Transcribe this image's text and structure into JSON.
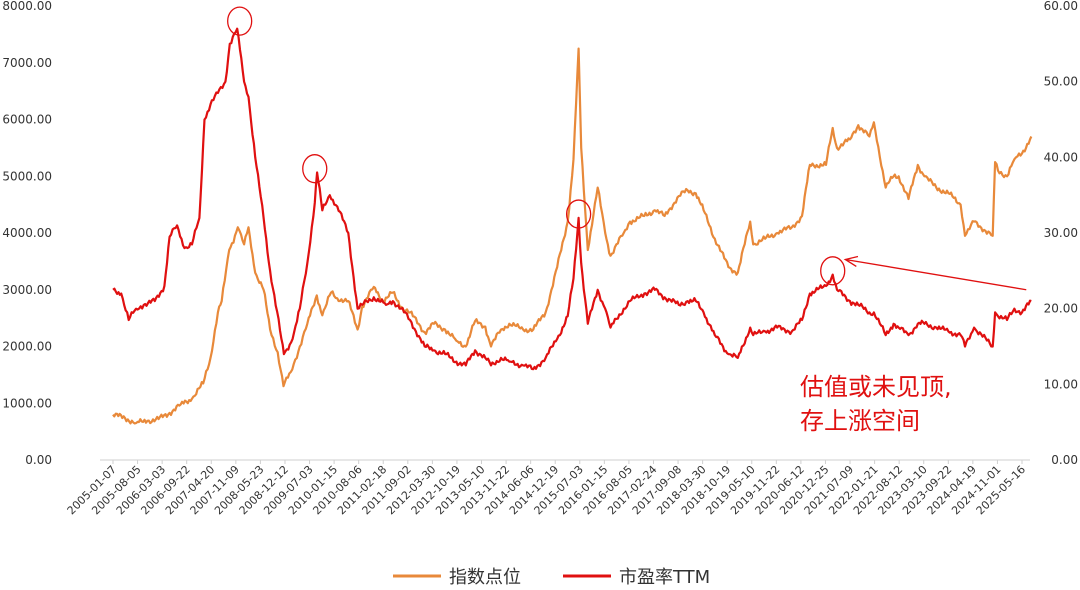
{
  "chart_data": {
    "type": "line",
    "y_left": {
      "ylim": [
        0,
        8000
      ],
      "ticks": [
        "0.00",
        "1000.00",
        "2000.00",
        "3000.00",
        "4000.00",
        "5000.00",
        "6000.00",
        "7000.00",
        "8000.00"
      ]
    },
    "y_right": {
      "ylim": [
        0,
        60
      ],
      "ticks": [
        "0.00",
        "10.00",
        "20.00",
        "30.00",
        "40.00",
        "50.00",
        "60.00"
      ]
    },
    "x_ticks": [
      "2005-01-07",
      "2005-08-05",
      "2006-03-03",
      "2006-09-22",
      "2007-04-20",
      "2007-11-09",
      "2008-05-23",
      "2008-12-12",
      "2009-07-03",
      "2010-01-15",
      "2010-08-06",
      "2011-02-18",
      "2011-09-02",
      "2012-03-30",
      "2012-10-19",
      "2013-05-10",
      "2013-11-22",
      "2014-06-06",
      "2014-12-19",
      "2015-07-03",
      "2016-01-15",
      "2016-08-05",
      "2017-02-24",
      "2017-09-08",
      "2018-03-30",
      "2018-10-19",
      "2019-05-10",
      "2019-11-22",
      "2020-06-12",
      "2020-12-25",
      "2021-07-09",
      "2022-01-21",
      "2022-08-12",
      "2023-03-10",
      "2023-09-22",
      "2024-04-19",
      "2024-11-01",
      "2025-05-16"
    ],
    "series": [
      {
        "name": "指数点位",
        "axis": "left",
        "color": "#e8893a",
        "points": [
          [
            "2005-01-07",
            800
          ],
          [
            "2005-04-15",
            740
          ],
          [
            "2005-07-15",
            650
          ],
          [
            "2005-10-15",
            690
          ],
          [
            "2006-01-15",
            720
          ],
          [
            "2006-04-15",
            830
          ],
          [
            "2006-07-15",
            980
          ],
          [
            "2006-10-15",
            1080
          ],
          [
            "2007-01-15",
            1350
          ],
          [
            "2007-03-15",
            1800
          ],
          [
            "2007-05-15",
            2600
          ],
          [
            "2007-06-15",
            2800
          ],
          [
            "2007-08-15",
            3700
          ],
          [
            "2007-10-01",
            3950
          ],
          [
            "2007-10-25",
            4100
          ],
          [
            "2007-12-15",
            3800
          ],
          [
            "2008-01-20",
            4100
          ],
          [
            "2008-03-15",
            3300
          ],
          [
            "2008-05-23",
            3000
          ],
          [
            "2008-07-15",
            2300
          ],
          [
            "2008-09-15",
            1900
          ],
          [
            "2008-11-01",
            1300
          ],
          [
            "2008-12-31",
            1550
          ],
          [
            "2009-03-15",
            2000
          ],
          [
            "2009-05-15",
            2400
          ],
          [
            "2009-08-01",
            2900
          ],
          [
            "2009-09-15",
            2550
          ],
          [
            "2009-11-25",
            2950
          ],
          [
            "2010-01-15",
            2850
          ],
          [
            "2010-04-15",
            2800
          ],
          [
            "2010-06-30",
            2300
          ],
          [
            "2010-08-06",
            2700
          ],
          [
            "2010-11-10",
            3050
          ],
          [
            "2011-01-25",
            2800
          ],
          [
            "2011-04-15",
            2950
          ],
          [
            "2011-06-20",
            2700
          ],
          [
            "2011-09-02",
            2600
          ],
          [
            "2011-12-31",
            2250
          ],
          [
            "2012-03-15",
            2400
          ],
          [
            "2012-06-15",
            2300
          ],
          [
            "2012-09-15",
            2100
          ],
          [
            "2012-12-01",
            2000
          ],
          [
            "2013-02-15",
            2450
          ],
          [
            "2013-05-10",
            2350
          ],
          [
            "2013-06-25",
            2000
          ],
          [
            "2013-09-15",
            2300
          ],
          [
            "2013-11-22",
            2400
          ],
          [
            "2014-03-15",
            2300
          ],
          [
            "2014-06-06",
            2300
          ],
          [
            "2014-09-15",
            2600
          ],
          [
            "2014-12-19",
            3400
          ],
          [
            "2015-03-15",
            4200
          ],
          [
            "2015-05-01",
            5300
          ],
          [
            "2015-06-12",
            7250
          ],
          [
            "2015-07-03",
            5500
          ],
          [
            "2015-08-26",
            3700
          ],
          [
            "2015-11-15",
            4800
          ],
          [
            "2016-01-15",
            4000
          ],
          [
            "2016-02-28",
            3600
          ],
          [
            "2016-06-15",
            4000
          ],
          [
            "2016-08-05",
            4200
          ],
          [
            "2016-11-30",
            4300
          ],
          [
            "2017-02-24",
            4400
          ],
          [
            "2017-05-15",
            4300
          ],
          [
            "2017-09-08",
            4650
          ],
          [
            "2017-11-20",
            4750
          ],
          [
            "2018-01-25",
            4700
          ],
          [
            "2018-03-30",
            4400
          ],
          [
            "2018-06-30",
            3900
          ],
          [
            "2018-10-19",
            3400
          ],
          [
            "2019-01-04",
            3300
          ],
          [
            "2019-04-15",
            4200
          ],
          [
            "2019-05-10",
            3800
          ],
          [
            "2019-08-15",
            3900
          ],
          [
            "2019-11-22",
            4000
          ],
          [
            "2020-03-20",
            4100
          ],
          [
            "2020-06-12",
            4300
          ],
          [
            "2020-08-15",
            5200
          ],
          [
            "2020-12-25",
            5200
          ],
          [
            "2021-02-18",
            5850
          ],
          [
            "2021-03-25",
            5500
          ],
          [
            "2021-07-09",
            5650
          ],
          [
            "2021-09-15",
            5900
          ],
          [
            "2021-12-15",
            5700
          ],
          [
            "2022-01-21",
            5950
          ],
          [
            "2022-04-27",
            4800
          ],
          [
            "2022-07-01",
            5000
          ],
          [
            "2022-08-12",
            5000
          ],
          [
            "2022-10-31",
            4600
          ],
          [
            "2023-01-15",
            5200
          ],
          [
            "2023-03-10",
            5000
          ],
          [
            "2023-06-15",
            4800
          ],
          [
            "2023-09-22",
            4700
          ],
          [
            "2023-12-31",
            4500
          ],
          [
            "2024-02-05",
            3950
          ],
          [
            "2024-04-19",
            4200
          ],
          [
            "2024-09-18",
            3950
          ],
          [
            "2024-10-08",
            5250
          ],
          [
            "2024-11-01",
            5100
          ],
          [
            "2025-01-13",
            5000
          ],
          [
            "2025-03-15",
            5300
          ],
          [
            "2025-05-16",
            5400
          ],
          [
            "2025-07-31",
            5700
          ]
        ]
      },
      {
        "name": "市盈率TTM",
        "axis": "right",
        "color": "#e01010",
        "points": [
          [
            "2005-01-07",
            22.5
          ],
          [
            "2005-03-15",
            22.0
          ],
          [
            "2005-05-15",
            18.5
          ],
          [
            "2005-07-15",
            20.0
          ],
          [
            "2005-09-15",
            20.5
          ],
          [
            "2005-12-15",
            21.0
          ],
          [
            "2006-03-03",
            23.0
          ],
          [
            "2006-04-15",
            29.5
          ],
          [
            "2006-06-15",
            31.0
          ],
          [
            "2006-08-15",
            28.0
          ],
          [
            "2006-10-15",
            28.5
          ],
          [
            "2006-12-15",
            32.0
          ],
          [
            "2007-01-25",
            45.0
          ],
          [
            "2007-03-15",
            47.0
          ],
          [
            "2007-05-15",
            48.5
          ],
          [
            "2007-07-15",
            50.0
          ],
          [
            "2007-08-20",
            55.0
          ],
          [
            "2007-10-20",
            57.0
          ],
          [
            "2007-12-15",
            50.0
          ],
          [
            "2008-01-20",
            48.0
          ],
          [
            "2008-03-15",
            40.0
          ],
          [
            "2008-05-23",
            32.0
          ],
          [
            "2008-07-15",
            25.0
          ],
          [
            "2008-10-15",
            16.0
          ],
          [
            "2008-11-05",
            14.0
          ],
          [
            "2009-01-15",
            16.0
          ],
          [
            "2009-03-15",
            20.0
          ],
          [
            "2009-05-15",
            26.0
          ],
          [
            "2009-07-15",
            34.0
          ],
          [
            "2009-08-03",
            38.0
          ],
          [
            "2009-09-15",
            33.0
          ],
          [
            "2009-11-15",
            35.0
          ],
          [
            "2010-01-15",
            33.5
          ],
          [
            "2010-04-15",
            30.0
          ],
          [
            "2010-06-30",
            20.0
          ],
          [
            "2010-08-06",
            20.5
          ],
          [
            "2010-11-10",
            21.5
          ],
          [
            "2011-02-18",
            20.5
          ],
          [
            "2011-04-15",
            21.0
          ],
          [
            "2011-06-20",
            20.0
          ],
          [
            "2011-09-02",
            18.5
          ],
          [
            "2011-12-31",
            15.0
          ],
          [
            "2012-03-15",
            14.5
          ],
          [
            "2012-06-15",
            14.0
          ],
          [
            "2012-09-15",
            13.0
          ],
          [
            "2012-12-01",
            12.5
          ],
          [
            "2013-02-15",
            14.5
          ],
          [
            "2013-05-10",
            13.5
          ],
          [
            "2013-06-25",
            12.5
          ],
          [
            "2013-09-15",
            13.5
          ],
          [
            "2013-11-22",
            13.0
          ],
          [
            "2014-03-15",
            12.5
          ],
          [
            "2014-06-06",
            12.0
          ],
          [
            "2014-09-15",
            13.5
          ],
          [
            "2014-12-19",
            16.0
          ],
          [
            "2015-03-15",
            19.0
          ],
          [
            "2015-05-01",
            24.0
          ],
          [
            "2015-06-12",
            32.0
          ],
          [
            "2015-07-03",
            26.0
          ],
          [
            "2015-08-26",
            18.0
          ],
          [
            "2015-11-15",
            22.5
          ],
          [
            "2016-01-15",
            20.0
          ],
          [
            "2016-02-28",
            17.5
          ],
          [
            "2016-06-15",
            20.0
          ],
          [
            "2016-08-05",
            21.0
          ],
          [
            "2016-11-30",
            22.0
          ],
          [
            "2017-02-24",
            22.5
          ],
          [
            "2017-05-15",
            21.5
          ],
          [
            "2017-09-08",
            20.5
          ],
          [
            "2017-11-20",
            21.0
          ],
          [
            "2018-01-25",
            21.0
          ],
          [
            "2018-03-30",
            19.5
          ],
          [
            "2018-06-30",
            16.5
          ],
          [
            "2018-10-19",
            14.0
          ],
          [
            "2019-01-04",
            13.5
          ],
          [
            "2019-04-15",
            17.5
          ],
          [
            "2019-05-10",
            16.5
          ],
          [
            "2019-08-15",
            17.0
          ],
          [
            "2019-11-22",
            17.5
          ],
          [
            "2020-03-20",
            17.0
          ],
          [
            "2020-06-12",
            18.5
          ],
          [
            "2020-08-15",
            22.0
          ],
          [
            "2020-12-25",
            23.0
          ],
          [
            "2021-02-18",
            24.5
          ],
          [
            "2021-03-25",
            22.5
          ],
          [
            "2021-07-09",
            21.0
          ],
          [
            "2021-09-15",
            20.5
          ],
          [
            "2021-12-15",
            19.5
          ],
          [
            "2022-01-21",
            19.5
          ],
          [
            "2022-04-27",
            16.5
          ],
          [
            "2022-07-01",
            18.0
          ],
          [
            "2022-08-12",
            17.5
          ],
          [
            "2022-10-31",
            16.5
          ],
          [
            "2023-01-15",
            18.0
          ],
          [
            "2023-03-10",
            18.0
          ],
          [
            "2023-06-15",
            17.5
          ],
          [
            "2023-09-22",
            17.0
          ],
          [
            "2023-12-31",
            16.5
          ],
          [
            "2024-02-05",
            15.0
          ],
          [
            "2024-04-19",
            17.5
          ],
          [
            "2024-09-18",
            15.0
          ],
          [
            "2024-10-08",
            19.5
          ],
          [
            "2024-11-01",
            19.0
          ],
          [
            "2025-01-13",
            18.5
          ],
          [
            "2025-03-15",
            20.0
          ],
          [
            "2025-05-16",
            19.5
          ],
          [
            "2025-07-31",
            21.0
          ]
        ]
      }
    ],
    "legend": {
      "placement": "bottom-center",
      "entries": [
        "指数点位",
        "市盈率TTM"
      ]
    },
    "grid": false,
    "annotations": {
      "text_lines": [
        "估值或未见顶,",
        "存上涨空间"
      ],
      "color": "#e01010",
      "circles": [
        {
          "date": "2007-11-09",
          "axis": "right",
          "value": 58.0
        },
        {
          "date": "2009-07-15",
          "axis": "right",
          "value": 38.5
        },
        {
          "date": "2015-06-12",
          "axis": "right",
          "value": 32.5
        },
        {
          "date": "2021-02-18",
          "axis": "right",
          "value": 25.0
        }
      ],
      "arrow": {
        "from": {
          "date": "2025-06-20",
          "axis": "right",
          "value": 22.5
        },
        "to": {
          "date": "2021-06-01",
          "axis": "right",
          "value": 26.5
        }
      }
    }
  }
}
